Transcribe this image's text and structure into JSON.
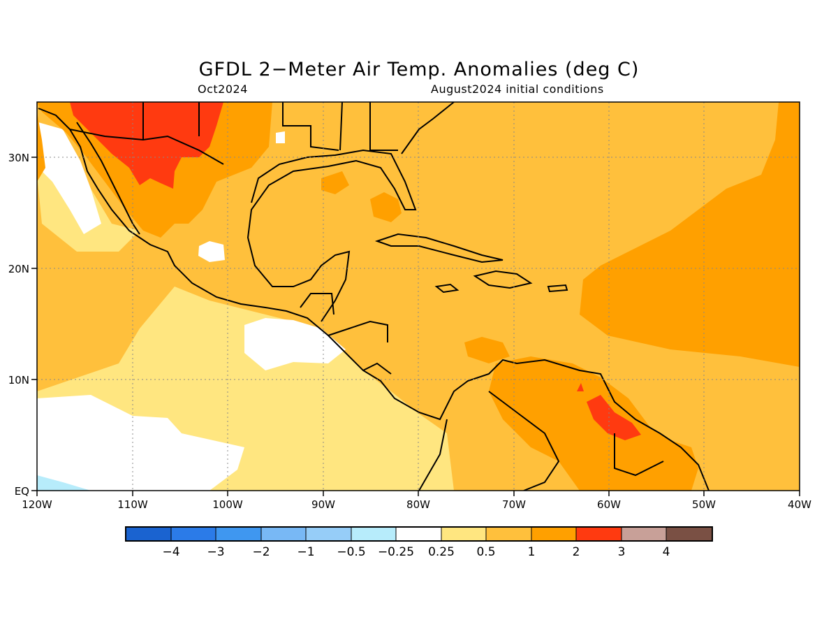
{
  "title": "GFDL 2−Meter Air Temp. Anomalies (deg C)",
  "subtitle_left": "Oct2024",
  "subtitle_right": "August2024 initial conditions",
  "map": {
    "lon_range": [
      -120,
      -40
    ],
    "lat_range": [
      0,
      35
    ],
    "x_ticks": [
      {
        "lon": -120,
        "label": "120W"
      },
      {
        "lon": -110,
        "label": "110W"
      },
      {
        "lon": -100,
        "label": "100W"
      },
      {
        "lon": -90,
        "label": "90W"
      },
      {
        "lon": -80,
        "label": "80W"
      },
      {
        "lon": -70,
        "label": "70W"
      },
      {
        "lon": -60,
        "label": "60W"
      },
      {
        "lon": -50,
        "label": "50W"
      },
      {
        "lon": -40,
        "label": "40W"
      }
    ],
    "y_ticks": [
      {
        "lat": 0,
        "label": "EQ"
      },
      {
        "lat": 10,
        "label": "10N"
      },
      {
        "lat": 20,
        "label": "20N"
      },
      {
        "lat": 30,
        "label": "30N"
      }
    ],
    "grid": "dotted"
  },
  "colorbar": {
    "colors": [
      "#1a63d0",
      "#2b7be8",
      "#3f97f0",
      "#78b8f5",
      "#96cdf8",
      "#b7ecfb",
      "#ffffff",
      "#ffe680",
      "#ffc03c",
      "#ffa000",
      "#ff3a10",
      "#c8a098",
      "#7a5044"
    ],
    "labels": [
      "−4",
      "−3",
      "−2",
      "−1",
      "−0.5",
      "−0.25",
      "0.25",
      "0.5",
      "1",
      "2",
      "3",
      "4"
    ]
  }
}
